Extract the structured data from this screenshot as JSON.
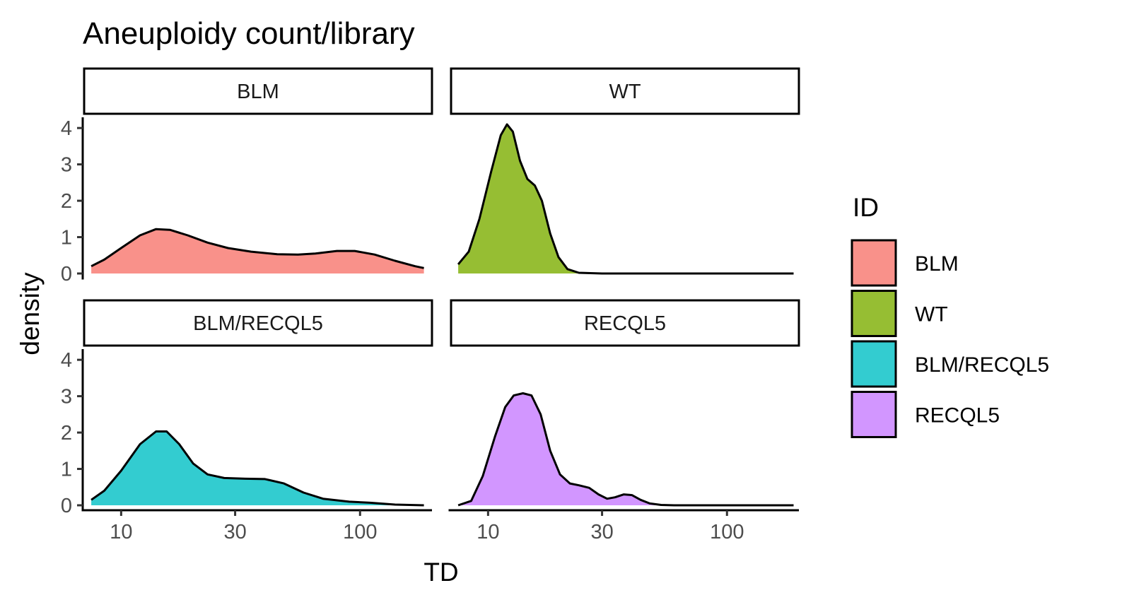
{
  "chart_data": {
    "type": "area",
    "subtype": "faceted density plot",
    "title": "Aneuploidy count/library",
    "xlabel": "TD",
    "ylabel": "density",
    "x_scale": "log10",
    "x_ticks": [
      10,
      30,
      100
    ],
    "x_tick_labels": [
      "10",
      "30",
      "100"
    ],
    "xlim": [
      7,
      200
    ],
    "y_ticks": [
      0,
      1,
      2,
      3,
      4
    ],
    "y_tick_labels": [
      "0",
      "1",
      "2",
      "3",
      "4"
    ],
    "ylim": [
      0,
      4.1
    ],
    "legend": {
      "title": "ID",
      "position": "right",
      "entries": [
        "BLM",
        "WT",
        "BLM/RECQL5",
        "RECQL5"
      ]
    },
    "facets": [
      {
        "label": "BLM",
        "color": "#F8766D",
        "points": [
          [
            7.5,
            0.2
          ],
          [
            8.5,
            0.38
          ],
          [
            10,
            0.7
          ],
          [
            12,
            1.05
          ],
          [
            14,
            1.22
          ],
          [
            16,
            1.2
          ],
          [
            19,
            1.05
          ],
          [
            23,
            0.85
          ],
          [
            28,
            0.7
          ],
          [
            35,
            0.6
          ],
          [
            45,
            0.53
          ],
          [
            55,
            0.52
          ],
          [
            65,
            0.55
          ],
          [
            80,
            0.62
          ],
          [
            95,
            0.62
          ],
          [
            115,
            0.52
          ],
          [
            140,
            0.35
          ],
          [
            170,
            0.2
          ],
          [
            185,
            0.15
          ]
        ]
      },
      {
        "label": "WT",
        "color": "#7CAE00",
        "points": [
          [
            7.5,
            0.25
          ],
          [
            8.3,
            0.6
          ],
          [
            9.2,
            1.5
          ],
          [
            10.3,
            2.8
          ],
          [
            11.3,
            3.8
          ],
          [
            12,
            4.1
          ],
          [
            12.7,
            3.9
          ],
          [
            13.6,
            3.1
          ],
          [
            14.6,
            2.6
          ],
          [
            15.7,
            2.42
          ],
          [
            16.8,
            2.0
          ],
          [
            18.2,
            1.1
          ],
          [
            19.7,
            0.45
          ],
          [
            21.5,
            0.12
          ],
          [
            24,
            0.02
          ],
          [
            30,
            0.0
          ],
          [
            50,
            0.0
          ],
          [
            100,
            0.0
          ],
          [
            190,
            0.0
          ]
        ]
      },
      {
        "label": "BLM/RECQL5",
        "color": "#00BFC4",
        "points": [
          [
            7.5,
            0.15
          ],
          [
            8.5,
            0.4
          ],
          [
            10,
            0.95
          ],
          [
            12,
            1.68
          ],
          [
            14,
            2.03
          ],
          [
            15.5,
            2.03
          ],
          [
            17.5,
            1.68
          ],
          [
            20,
            1.15
          ],
          [
            23,
            0.85
          ],
          [
            27,
            0.75
          ],
          [
            33,
            0.73
          ],
          [
            40,
            0.72
          ],
          [
            48,
            0.6
          ],
          [
            58,
            0.35
          ],
          [
            70,
            0.18
          ],
          [
            90,
            0.1
          ],
          [
            110,
            0.07
          ],
          [
            140,
            0.02
          ],
          [
            185,
            0.0
          ]
        ]
      },
      {
        "label": "RECQL5",
        "color": "#C77CFF",
        "points": [
          [
            7.5,
            0.0
          ],
          [
            8.5,
            0.12
          ],
          [
            9.5,
            0.8
          ],
          [
            10.7,
            1.9
          ],
          [
            11.8,
            2.7
          ],
          [
            12.8,
            3.02
          ],
          [
            14,
            3.08
          ],
          [
            15.2,
            3.02
          ],
          [
            16.6,
            2.5
          ],
          [
            18.2,
            1.5
          ],
          [
            20,
            0.85
          ],
          [
            22,
            0.6
          ],
          [
            24,
            0.55
          ],
          [
            26.5,
            0.48
          ],
          [
            29,
            0.3
          ],
          [
            31.5,
            0.18
          ],
          [
            34,
            0.22
          ],
          [
            37,
            0.3
          ],
          [
            40,
            0.28
          ],
          [
            43.5,
            0.15
          ],
          [
            47.5,
            0.05
          ],
          [
            53,
            0.01
          ],
          [
            60,
            0.0
          ],
          [
            100,
            0.0
          ],
          [
            190,
            0.0
          ]
        ]
      }
    ]
  }
}
